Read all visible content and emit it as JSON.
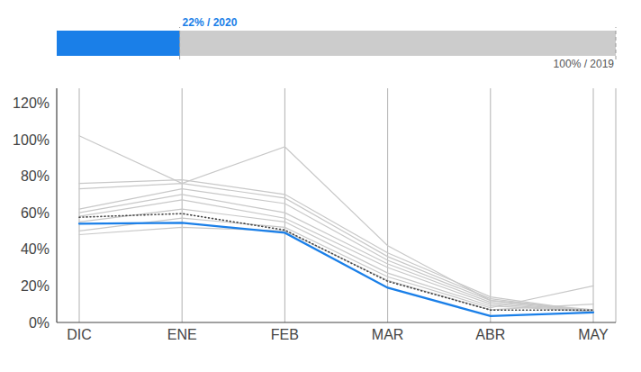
{
  "chart_data": [
    {
      "type": "bar",
      "orientation": "horizontal",
      "categories": [
        null
      ],
      "series": [
        {
          "color": "#cccccc",
          "values": [
            100
          ],
          "value_labels": [
            "100% / 2019"
          ]
        },
        {
          "color": "#1a7fe8",
          "values": [
            22
          ],
          "value_labels": [
            "22% / 2020"
          ]
        }
      ],
      "xlim": [
        0,
        100
      ],
      "data_labels": true,
      "tick_labels": false
    },
    {
      "type": "line",
      "categories": [
        "DIC",
        "ENE",
        "FEB",
        "MAR",
        "ABR",
        "MAY"
      ],
      "series": [
        {
          "color": "#c8c8c8",
          "line_style": "solid",
          "values": [
            1.02,
            0.76,
            0.96,
            0.42,
            0.12,
            0.07
          ]
        },
        {
          "color": "#c8c8c8",
          "line_style": "solid",
          "values": [
            0.76,
            0.78,
            0.7,
            0.38,
            0.14,
            0.06
          ]
        },
        {
          "color": "#c8c8c8",
          "line_style": "solid",
          "values": [
            0.73,
            0.76,
            0.68,
            0.36,
            0.13,
            0.06
          ]
        },
        {
          "color": "#c8c8c8",
          "line_style": "solid",
          "values": [
            0.62,
            0.73,
            0.65,
            0.34,
            0.12,
            0.06
          ]
        },
        {
          "color": "#c8c8c8",
          "line_style": "solid",
          "values": [
            0.6,
            0.7,
            0.6,
            0.32,
            0.11,
            0.06
          ]
        },
        {
          "color": "#c8c8c8",
          "line_style": "solid",
          "values": [
            0.58,
            0.67,
            0.57,
            0.3,
            0.1,
            0.06
          ]
        },
        {
          "color": "#c8c8c8",
          "line_style": "solid",
          "values": [
            0.55,
            0.62,
            0.55,
            0.27,
            0.09,
            0.06
          ]
        },
        {
          "color": "#c8c8c8",
          "line_style": "solid",
          "values": [
            0.5,
            0.57,
            0.52,
            0.25,
            0.08,
            0.2
          ]
        },
        {
          "color": "#c8c8c8",
          "line_style": "solid",
          "values": [
            0.48,
            0.52,
            0.5,
            0.23,
            0.07,
            0.1
          ]
        },
        {
          "color": "#444444",
          "line_style": "dotted",
          "values": [
            0.575,
            0.595,
            0.505,
            0.225,
            0.068,
            0.068
          ]
        },
        {
          "color": "#1a7fe8",
          "line_style": "solid",
          "values": [
            0.54,
            0.545,
            0.49,
            0.19,
            0.035,
            0.055
          ]
        }
      ],
      "ylim": [
        0.0,
        1.28
      ],
      "yticks": [
        {
          "value": 0.0,
          "label": "0%"
        },
        {
          "value": 0.2,
          "label": "20%"
        },
        {
          "value": 0.4,
          "label": "40%"
        },
        {
          "value": 0.6,
          "label": "60%"
        },
        {
          "value": 0.8,
          "label": "80%"
        },
        {
          "value": 1.0,
          "label": "100%"
        },
        {
          "value": 1.2,
          "label": "120%"
        }
      ],
      "grid": "x"
    }
  ]
}
